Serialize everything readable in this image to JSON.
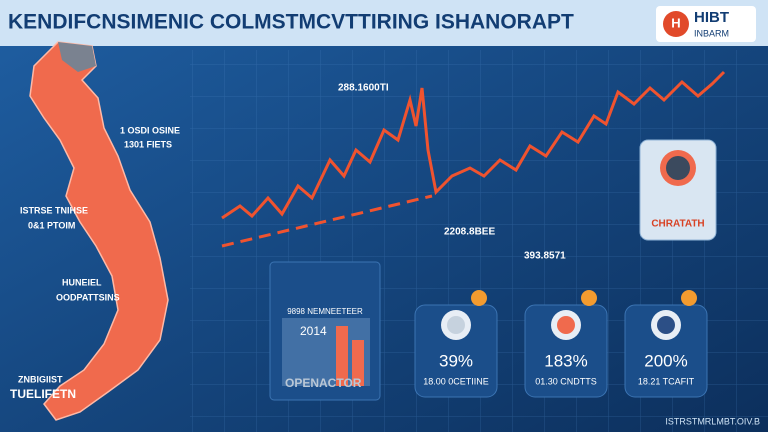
{
  "header": {
    "title": "KENDIFCNSIMENIC COLMSTMCVTTIRING ISHANORAPT",
    "logo": "HIBT",
    "logo_sub": "INBARM"
  },
  "map_labels": [
    {
      "line1": "1 OSDI OSINE",
      "line2": "1301 FIETS"
    },
    {
      "line1": "ISTRSE TNIHSE",
      "line2": "0&1 PTOIM"
    },
    {
      "line1": "HUNEIEL",
      "line2": "OODPATTSINS"
    },
    {
      "line1": "ZNBIGIIST",
      "line2": "TUELIFETN"
    }
  ],
  "chart_labels": [
    "288.1600TI",
    "2208.8BEE",
    "393.8571"
  ],
  "icon_box": {
    "label": "CHRATATH"
  },
  "building_box": {
    "caption": "9898 NEMNEETEER",
    "year": "2014",
    "label": "OPENACTOR"
  },
  "stat_cards": [
    {
      "value": "39%",
      "label": "18.00 0CETIINE"
    },
    {
      "value": "183%",
      "label": "01.30 CNDTTS"
    },
    {
      "value": "200%",
      "label": "18.21 TCAFIT"
    }
  ],
  "footer": "ISTRSTMRLMBT.OIV.B"
}
